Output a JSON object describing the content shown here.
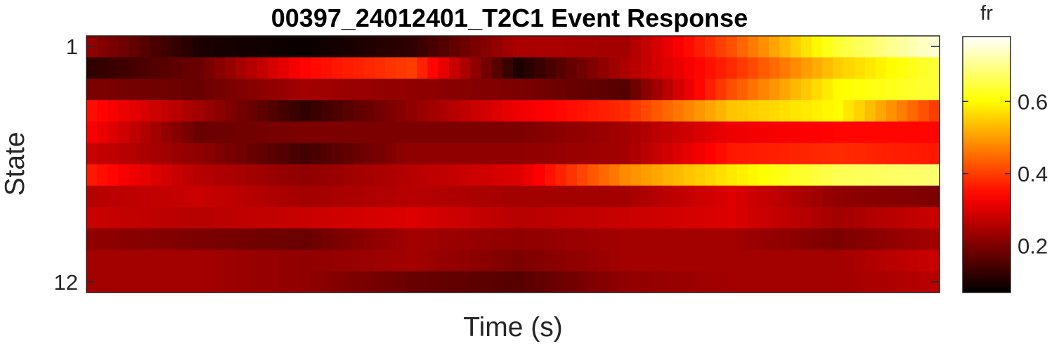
{
  "chart_data": {
    "type": "heatmap",
    "title": "00397_24012401_T2C1 Event Response",
    "xlabel": "Time (s)",
    "ylabel": "State",
    "y_tick_labels": [
      "1",
      "12"
    ],
    "x_tick_labels": [],
    "colormap": "hot",
    "colorbar": {
      "title": "fr",
      "ticks": [
        0.2,
        0.4,
        0.6
      ],
      "tick_labels": [
        "0.2",
        "0.4",
        "0.6"
      ],
      "range": [
        0.07,
        0.78
      ]
    },
    "rows": 12,
    "columns": 80,
    "anchor_columns": [
      0,
      10,
      20,
      30,
      40,
      50,
      60,
      70,
      79
    ],
    "row_anchors": [
      [
        0.22,
        0.1,
        0.08,
        0.12,
        0.25,
        0.24,
        0.42,
        0.64,
        0.75
      ],
      [
        0.12,
        0.18,
        0.34,
        0.4,
        0.1,
        0.25,
        0.38,
        0.55,
        0.64
      ],
      [
        0.2,
        0.18,
        0.24,
        0.22,
        0.2,
        0.16,
        0.42,
        0.6,
        0.64
      ],
      [
        0.35,
        0.24,
        0.12,
        0.22,
        0.32,
        0.38,
        0.54,
        0.6,
        0.4
      ],
      [
        0.33,
        0.18,
        0.2,
        0.2,
        0.2,
        0.24,
        0.32,
        0.34,
        0.34
      ],
      [
        0.28,
        0.22,
        0.14,
        0.22,
        0.22,
        0.24,
        0.36,
        0.38,
        0.36
      ],
      [
        0.36,
        0.26,
        0.22,
        0.26,
        0.3,
        0.48,
        0.58,
        0.66,
        0.68
      ],
      [
        0.26,
        0.28,
        0.24,
        0.26,
        0.24,
        0.24,
        0.3,
        0.22,
        0.2
      ],
      [
        0.28,
        0.26,
        0.28,
        0.3,
        0.26,
        0.28,
        0.3,
        0.24,
        0.28
      ],
      [
        0.22,
        0.2,
        0.18,
        0.24,
        0.22,
        0.24,
        0.24,
        0.2,
        0.24
      ],
      [
        0.24,
        0.24,
        0.22,
        0.24,
        0.2,
        0.24,
        0.24,
        0.24,
        0.28
      ],
      [
        0.24,
        0.24,
        0.22,
        0.18,
        0.16,
        0.22,
        0.24,
        0.24,
        0.26
      ]
    ]
  }
}
